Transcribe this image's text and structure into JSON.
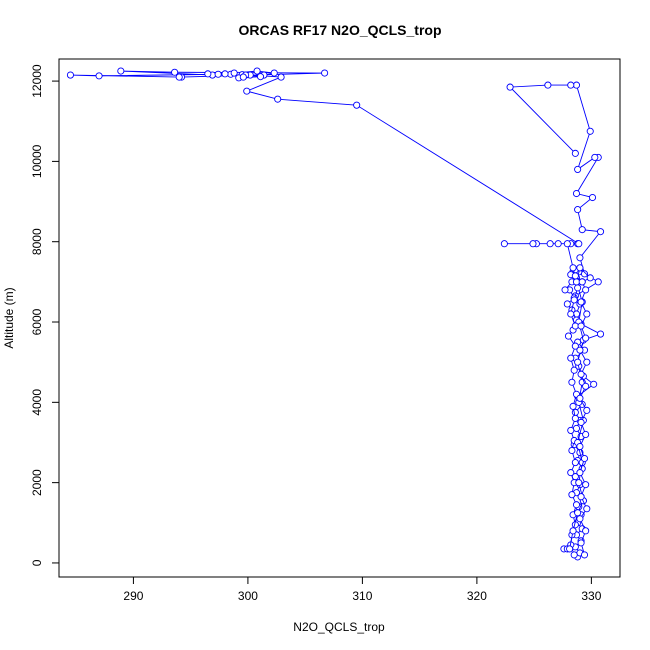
{
  "chart_data": {
    "type": "line",
    "title": "ORCAS RF17 N2O_QCLS_trop",
    "xlabel": "N2O_QCLS_trop",
    "ylabel": "Altitude (m)",
    "xlim": [
      283.5,
      332.5
    ],
    "ylim": [
      -350,
      12550
    ],
    "xticks": [
      290,
      300,
      310,
      320,
      330
    ],
    "yticks": [
      0,
      2000,
      4000,
      6000,
      8000,
      10000,
      12000
    ],
    "series": [
      {
        "color": "#0000ff",
        "marker": "open-circle",
        "points": [
          [
            328.8,
            150
          ],
          [
            329.0,
            250
          ],
          [
            328.6,
            400
          ],
          [
            329.1,
            550
          ],
          [
            328.7,
            700
          ],
          [
            329.2,
            850
          ],
          [
            328.8,
            1000
          ],
          [
            329.1,
            1200
          ],
          [
            328.9,
            1400
          ],
          [
            329.3,
            1550
          ],
          [
            328.7,
            1750
          ],
          [
            329.0,
            1950
          ],
          [
            328.6,
            2150
          ],
          [
            329.2,
            2350
          ],
          [
            328.8,
            2550
          ],
          [
            329.0,
            2750
          ],
          [
            328.5,
            2950
          ],
          [
            329.1,
            3150
          ],
          [
            328.7,
            3350
          ],
          [
            329.0,
            3550
          ],
          [
            328.6,
            3750
          ],
          [
            329.2,
            3950
          ],
          [
            328.8,
            4150
          ],
          [
            330.2,
            4450
          ],
          [
            329.3,
            4650
          ],
          [
            328.9,
            4900
          ],
          [
            328.6,
            5100
          ],
          [
            329.4,
            5300
          ],
          [
            328.8,
            5500
          ],
          [
            330.8,
            5700
          ],
          [
            329.1,
            5950
          ],
          [
            328.7,
            6200
          ],
          [
            329.0,
            6450
          ],
          [
            328.6,
            6650
          ],
          [
            330.6,
            7000
          ],
          [
            329.4,
            7200
          ],
          [
            329.0,
            7600
          ],
          [
            330.8,
            8250
          ],
          [
            329.2,
            8300
          ],
          [
            328.8,
            8800
          ],
          [
            330.1,
            9100
          ],
          [
            328.7,
            9200
          ],
          [
            330.6,
            10100
          ],
          [
            330.3,
            10100
          ],
          [
            328.8,
            9800
          ],
          [
            329.9,
            10750
          ],
          [
            328.7,
            11900
          ],
          [
            328.2,
            11900
          ],
          [
            326.2,
            11900
          ],
          [
            322.9,
            11850
          ],
          [
            328.6,
            10200
          ]
        ]
      },
      {
        "color": "#0000ff",
        "marker": "open-circle",
        "points": [
          [
            328.5,
            200
          ],
          [
            328.2,
            450
          ],
          [
            328.3,
            700
          ],
          [
            328.6,
            950
          ],
          [
            328.4,
            1200
          ],
          [
            328.7,
            1450
          ],
          [
            328.3,
            1700
          ],
          [
            328.5,
            2000
          ],
          [
            328.2,
            2250
          ],
          [
            328.6,
            2500
          ],
          [
            328.3,
            2800
          ],
          [
            328.5,
            3050
          ],
          [
            328.2,
            3300
          ],
          [
            328.6,
            3600
          ],
          [
            328.4,
            3900
          ],
          [
            328.7,
            4200
          ],
          [
            328.3,
            4500
          ],
          [
            328.5,
            4800
          ],
          [
            328.2,
            5100
          ],
          [
            328.6,
            5400
          ],
          [
            328.0,
            5650
          ],
          [
            328.4,
            5800
          ],
          [
            328.7,
            6050
          ],
          [
            328.3,
            6300
          ],
          [
            327.9,
            6450
          ],
          [
            328.5,
            6600
          ],
          [
            328.1,
            6800
          ],
          [
            327.7,
            6800
          ],
          [
            328.3,
            7000
          ],
          [
            328.5,
            7200
          ],
          [
            328.9,
            7250
          ],
          [
            328.7,
            7100
          ],
          [
            328.4,
            7250
          ],
          [
            328.6,
            7300
          ],
          [
            328.2,
            7180
          ]
        ]
      },
      {
        "color": "#0000ff",
        "marker": "open-circle",
        "points": [
          [
            327.6,
            350
          ],
          [
            327.9,
            350
          ],
          [
            328.1,
            350
          ],
          [
            328.4,
            800
          ],
          [
            328.8,
            1250
          ],
          [
            329.3,
            1550
          ],
          [
            328.9,
            2000
          ],
          [
            329.2,
            2500
          ],
          [
            328.8,
            3000
          ],
          [
            329.3,
            3550
          ],
          [
            328.9,
            4000
          ],
          [
            329.2,
            4500
          ],
          [
            328.8,
            5000
          ],
          [
            329.3,
            5550
          ],
          [
            328.9,
            6000
          ],
          [
            329.2,
            6500
          ],
          [
            328.7,
            7000
          ],
          [
            329.0,
            7350
          ],
          [
            329.9,
            7100
          ],
          [
            329.2,
            7000
          ],
          [
            328.8,
            6850
          ],
          [
            328.5,
            6550
          ],
          [
            328.2,
            6200
          ],
          [
            328.6,
            5900
          ]
        ]
      },
      {
        "color": "#0000ff",
        "marker": "open-circle",
        "points": [
          [
            322.4,
            7950
          ],
          [
            325.2,
            7950
          ],
          [
            324.9,
            7950
          ],
          [
            326.4,
            7950
          ],
          [
            327.1,
            7950
          ],
          [
            328.2,
            7950
          ],
          [
            328.8,
            7950
          ],
          [
            327.9,
            7950
          ],
          [
            328.4,
            7350
          ],
          [
            328.7,
            7000
          ]
        ]
      },
      {
        "color": "#0000ff",
        "marker": "open-circle",
        "points": [
          [
            328.9,
            7950
          ],
          [
            309.5,
            11400
          ],
          [
            302.6,
            11550
          ],
          [
            299.9,
            11750
          ],
          [
            302.9,
            12100
          ],
          [
            300.2,
            12150
          ],
          [
            301.4,
            12150
          ],
          [
            302.3,
            12200
          ],
          [
            300.8,
            12250
          ],
          [
            296.9,
            12150
          ],
          [
            288.9,
            12250
          ],
          [
            293.6,
            12220
          ],
          [
            306.7,
            12200
          ],
          [
            294.2,
            12100
          ],
          [
            294.0,
            12100
          ],
          [
            284.5,
            12150
          ],
          [
            287.0,
            12130
          ],
          [
            297.4,
            12170
          ],
          [
            298.5,
            12170
          ],
          [
            299.2,
            12140
          ],
          [
            298.0,
            12180
          ],
          [
            299.5,
            12160
          ],
          [
            298.8,
            12200
          ],
          [
            296.5,
            12180
          ],
          [
            299.8,
            12150
          ],
          [
            301.1,
            12110
          ],
          [
            299.2,
            12080
          ],
          [
            299.6,
            12100
          ]
        ]
      },
      {
        "color": "#0000ff",
        "marker": "open-circle",
        "points": [
          [
            329.4,
            200
          ],
          [
            329.1,
            500
          ],
          [
            329.5,
            800
          ],
          [
            329.0,
            1100
          ],
          [
            329.6,
            1350
          ],
          [
            329.1,
            1650
          ],
          [
            329.5,
            1950
          ],
          [
            329.0,
            2250
          ],
          [
            329.4,
            2600
          ],
          [
            329.0,
            2900
          ],
          [
            329.5,
            3200
          ],
          [
            329.1,
            3500
          ],
          [
            329.6,
            3800
          ],
          [
            329.0,
            4100
          ],
          [
            329.5,
            4400
          ],
          [
            329.1,
            4700
          ],
          [
            329.6,
            5000
          ],
          [
            329.0,
            5300
          ],
          [
            329.5,
            5600
          ],
          [
            329.1,
            5900
          ],
          [
            329.6,
            6200
          ],
          [
            329.1,
            6500
          ],
          [
            329.5,
            6800
          ],
          [
            329.2,
            7000
          ],
          [
            328.6,
            7150
          ]
        ]
      }
    ]
  }
}
